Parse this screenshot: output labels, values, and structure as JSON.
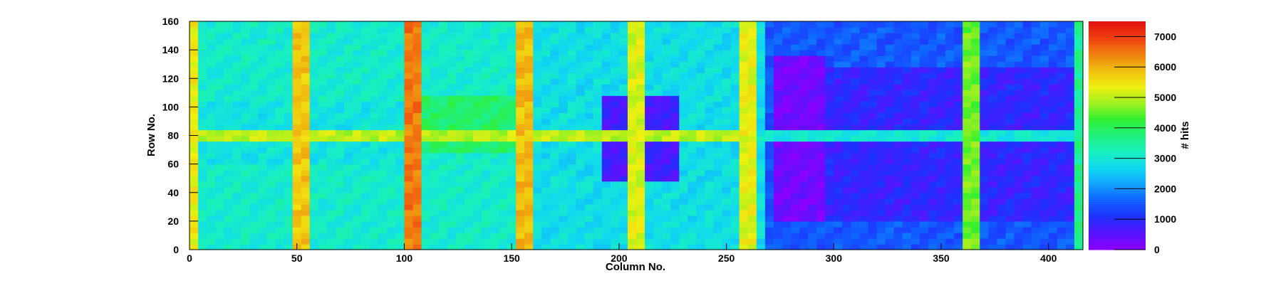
{
  "chart_data": {
    "type": "heatmap",
    "title": "",
    "xlabel": "Column No.",
    "ylabel": "Row No.",
    "colorbar_label": "# hits",
    "xlim": [
      0,
      416
    ],
    "ylim": [
      0,
      160
    ],
    "zlim": [
      0,
      7500
    ],
    "x_ticks": [
      0,
      50,
      100,
      150,
      200,
      250,
      300,
      350,
      400
    ],
    "y_ticks": [
      0,
      20,
      40,
      60,
      80,
      100,
      120,
      140,
      160
    ],
    "z_ticks": [
      0,
      1000,
      2000,
      3000,
      4000,
      5000,
      6000,
      7000
    ],
    "colormap": [
      "#8a00ff",
      "#5a14ff",
      "#2030ff",
      "#1060ff",
      "#10a0ff",
      "#10d8f0",
      "#18f0c0",
      "#20f080",
      "#30f030",
      "#a0f020",
      "#f0f010",
      "#f0c010",
      "#f08010",
      "#f04010",
      "#e01010"
    ],
    "cell_grid": {
      "nx": 104,
      "ny": 40,
      "x_bin": 4,
      "y_bin": 4
    },
    "background_levels": [
      {
        "x_range": [
          0,
          156
        ],
        "y_range": [
          0,
          160
        ],
        "hits": 3100
      },
      {
        "x_range": [
          156,
          270
        ],
        "y_range": [
          0,
          160
        ],
        "hits": 2800
      },
      {
        "x_range": [
          270,
          416
        ],
        "y_range": [
          0,
          160
        ],
        "hits": 1500
      }
    ],
    "regions": [
      {
        "x_range": [
          100,
          156
        ],
        "y_range": [
          70,
          110
        ],
        "hits": 3900
      },
      {
        "x_range": [
          0,
          100
        ],
        "y_range": [
          60,
          105
        ],
        "hits": 2900
      },
      {
        "x_range": [
          192,
          228
        ],
        "y_range": [
          50,
          110
        ],
        "hits": 700
      },
      {
        "x_range": [
          272,
          296
        ],
        "y_range": [
          20,
          138
        ],
        "hits": 250
      },
      {
        "x_range": [
          296,
          416
        ],
        "y_range": [
          20,
          130
        ],
        "hits": 900
      },
      {
        "x_range": [
          412,
          416
        ],
        "y_range": [
          0,
          160
        ],
        "hits": 3600
      }
    ],
    "hot_columns": [
      {
        "x": 0,
        "hits": 5400
      },
      {
        "x": 52,
        "hits": 5800
      },
      {
        "x": 104,
        "hits": 6500
      },
      {
        "x": 156,
        "hits": 5900
      },
      {
        "x": 208,
        "hits": 5200
      },
      {
        "x": 260,
        "hits": 5300
      },
      {
        "x": 364,
        "hits": 4600
      }
    ],
    "hot_rows": [
      {
        "y": 80,
        "x_range": [
          0,
          260
        ],
        "hits": 5000
      },
      {
        "y": 80,
        "x_range": [
          260,
          416
        ],
        "hits": 3000
      }
    ]
  }
}
